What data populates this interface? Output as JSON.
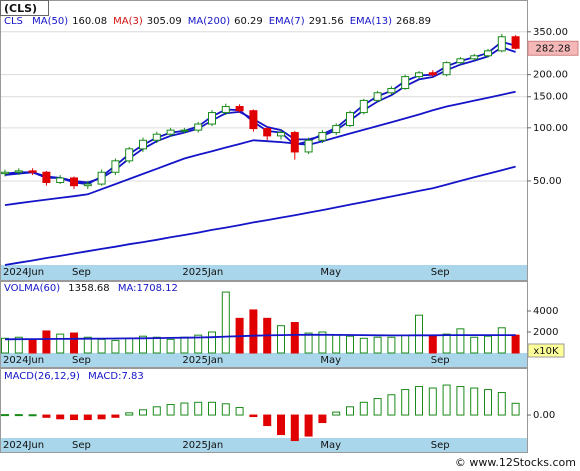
{
  "title": "(CLS)",
  "footer": "© www.12Stocks.com",
  "chart_data": [
    {
      "type": "candlestick",
      "symbol": "CLS",
      "categories": [
        "2024Jun",
        null,
        null,
        null,
        null,
        "Sep",
        null,
        null,
        null,
        null,
        null,
        null,
        null,
        "2025Jan",
        null,
        null,
        null,
        null,
        null,
        null,
        null,
        null,
        null,
        "May",
        null,
        null,
        null,
        null,
        null,
        null,
        null,
        "Sep",
        null,
        null,
        null,
        null,
        null,
        null
      ],
      "open": [
        55,
        56,
        57,
        56,
        49,
        52,
        47,
        48,
        56,
        65,
        76,
        85,
        92,
        97,
        97,
        105,
        122,
        132,
        125,
        99,
        90,
        94,
        73,
        85,
        94,
        103,
        122,
        143,
        158,
        167,
        195,
        205,
        200,
        234,
        246,
        256,
        273,
        328
      ],
      "high": [
        58,
        59,
        59,
        57,
        54,
        53,
        50,
        58,
        67,
        78,
        88,
        95,
        100,
        100,
        108,
        126,
        137,
        136,
        127,
        101,
        97,
        96,
        88,
        97,
        106,
        125,
        146,
        162,
        172,
        200,
        210,
        212,
        238,
        252,
        262,
        280,
        340,
        335
      ],
      "low": [
        53,
        54,
        54,
        47,
        48,
        45,
        45,
        47,
        54,
        63,
        73,
        82,
        89,
        93,
        94,
        102,
        118,
        122,
        95,
        85,
        86,
        66,
        71,
        82,
        91,
        101,
        119,
        140,
        154,
        164,
        190,
        195,
        196,
        228,
        240,
        250,
        268,
        278
      ],
      "close": [
        56,
        57,
        56,
        49,
        52,
        47,
        48,
        56,
        65,
        76,
        85,
        92,
        97,
        97,
        105,
        122,
        132,
        125,
        99,
        90,
        94,
        73,
        85,
        94,
        103,
        122,
        143,
        158,
        167,
        195,
        205,
        200,
        234,
        246,
        256,
        273,
        328,
        282.28
      ],
      "up_color": "#1a8a1a",
      "down_color": "#e00000",
      "series": [
        {
          "name": "MA(50)",
          "value": 160.08,
          "color": "#1414c8",
          "values": [
            36.5,
            37.4,
            38.3,
            39.2,
            40.1,
            41.0,
            42,
            44.9,
            48.0,
            51.3,
            54.8,
            58.6,
            62.7,
            67,
            70.3,
            73.7,
            77.3,
            81.0,
            85,
            84,
            83,
            81.5,
            80,
            84,
            88.3,
            92.8,
            97.5,
            102.4,
            107.6,
            113,
            119,
            125.6,
            132,
            137.2,
            142.6,
            148.2,
            154,
            160.08
          ]
        },
        {
          "name": "MA(3)",
          "value": 305.09,
          "color": "#d01010"
        },
        {
          "name": "MA(200)",
          "value": 60.29,
          "color": "#1414c8",
          "values": [
            16.7,
            17.2,
            17.7,
            18.3,
            18.8,
            19.4,
            20.0,
            20.6,
            21.2,
            21.9,
            22.5,
            23.2,
            24.0,
            24.7,
            25.5,
            26.4,
            27.2,
            28.1,
            29.1,
            30.0,
            31.0,
            32.0,
            33.1,
            34.2,
            35.4,
            36.7,
            38.0,
            39.4,
            40.8,
            42.3,
            43.9,
            45.5,
            47.7,
            50.0,
            52.4,
            54.9,
            57.5,
            60.29
          ]
        },
        {
          "name": "EMA(7)",
          "value": 291.56,
          "color": "#1414c8",
          "values": [
            55,
            56,
            56,
            52,
            52,
            49,
            48,
            53,
            61,
            71,
            80,
            88,
            94,
            96,
            102,
            116,
            127,
            126,
            108,
            96,
            94,
            80,
            84,
            92,
            100,
            116,
            135,
            151,
            162,
            184,
            198,
            200,
            223,
            239,
            251,
            266,
            307,
            291.56
          ]
        },
        {
          "name": "EMA(13)",
          "value": 268.89,
          "color": "#1414c8",
          "values": [
            54,
            55,
            56,
            53,
            52,
            50,
            49,
            52,
            58,
            67,
            76,
            84,
            90,
            94,
            99,
            110,
            121,
            123,
            112,
            101,
            97,
            86,
            86,
            90,
            97,
            110,
            126,
            141,
            153,
            172,
            188,
            194,
            212,
            228,
            240,
            254,
            286,
            268.89
          ]
        }
      ],
      "ylim": [
        16.7,
        523
      ],
      "log_scale": true,
      "grid": true,
      "yticks": [
        {
          "value": 50,
          "label": "50.00"
        },
        {
          "value": 100,
          "label": "100.00"
        },
        {
          "value": 150,
          "label": "150.00"
        },
        {
          "value": 200,
          "label": "200.00"
        },
        {
          "value": 350,
          "label": "350.00"
        }
      ]
    },
    {
      "type": "bar",
      "title": "VOLMA(60)",
      "volma": 1358.68,
      "unit": "x10K",
      "color_by": "candle",
      "values": [
        1400,
        1500,
        1300,
        2100,
        1800,
        1900,
        1500,
        1300,
        1200,
        1400,
        1600,
        1500,
        1300,
        1500,
        1700,
        2000,
        5800,
        3300,
        4100,
        3300,
        2600,
        2900,
        1900,
        2000,
        1700,
        1600,
        1400,
        1500,
        1500,
        1700,
        3600,
        1700,
        1800,
        2300,
        1500,
        1600,
        2400,
        1700
      ],
      "series": [
        {
          "name": "MA:1708.12",
          "color": "#1414c8",
          "values": [
            1300,
            1310,
            1320,
            1330,
            1340,
            1350,
            1360,
            1370,
            1380,
            1390,
            1400,
            1420,
            1440,
            1460,
            1480,
            1500,
            1560,
            1600,
            1650,
            1680,
            1700,
            1720,
            1730,
            1730,
            1720,
            1710,
            1700,
            1690,
            1680,
            1680,
            1690,
            1690,
            1700,
            1700,
            1700,
            1705,
            1708,
            1708.12
          ]
        }
      ],
      "ylim": [
        0,
        6760
      ],
      "yticks": [
        2000,
        4000
      ],
      "grid": false
    },
    {
      "type": "bar",
      "title": "MACD(26,12,9)",
      "subtitle": "MACD:7.83",
      "color_by": "sign",
      "values": [
        0.3,
        0.3,
        0.2,
        -1.5,
        -2.5,
        -3,
        -3,
        -2.5,
        -1.5,
        1.5,
        3.5,
        5.5,
        7,
        8,
        8.5,
        8.5,
        7.5,
        5,
        -1,
        -7,
        -13,
        -17,
        -14,
        -5,
        2,
        5.5,
        8.5,
        11,
        13.5,
        17,
        19,
        18,
        20,
        19,
        18,
        17,
        15,
        7.83
      ],
      "ylim": [
        -17.3,
        30.7
      ],
      "yticks": [
        {
          "value": 0,
          "label": "0.00"
        }
      ],
      "grid": false
    }
  ]
}
